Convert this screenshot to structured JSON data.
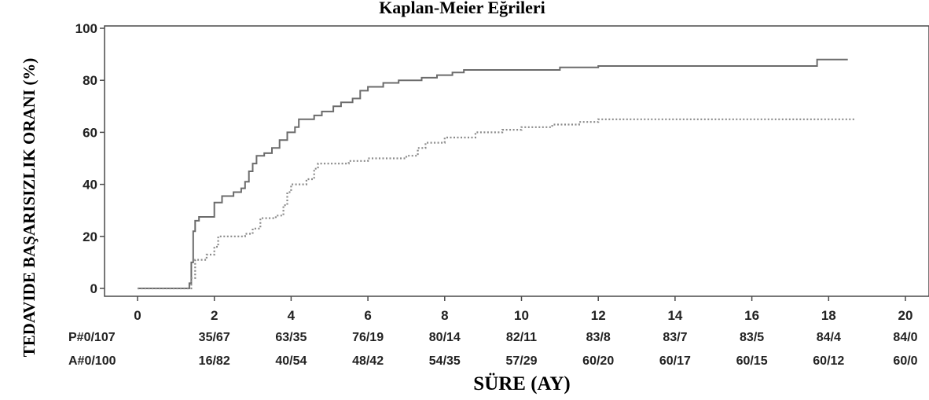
{
  "chart_data": {
    "type": "line",
    "title": "Kaplan-Meier Eğrileri",
    "xlabel": "SÜRE (AY)",
    "ylabel": "TEDAVIDE BAŞARISIZLIK ORANI (%)",
    "xlim": [
      0,
      20
    ],
    "ylim": [
      0,
      100
    ],
    "x_ticks": [
      0,
      2,
      4,
      6,
      8,
      10,
      12,
      14,
      16,
      18,
      20
    ],
    "y_ticks": [
      0,
      20,
      40,
      60,
      80,
      100
    ],
    "grid": false,
    "series": [
      {
        "style": "solid",
        "color": "#6b6b6b",
        "points": [
          [
            0,
            0
          ],
          [
            1.3,
            0
          ],
          [
            1.35,
            2
          ],
          [
            1.4,
            10
          ],
          [
            1.45,
            22
          ],
          [
            1.5,
            26
          ],
          [
            1.6,
            27.5
          ],
          [
            1.9,
            27.5
          ],
          [
            2.0,
            33
          ],
          [
            2.2,
            35.5
          ],
          [
            2.5,
            37
          ],
          [
            2.7,
            38.5
          ],
          [
            2.8,
            41
          ],
          [
            2.9,
            45
          ],
          [
            3.0,
            48
          ],
          [
            3.1,
            51
          ],
          [
            3.3,
            52
          ],
          [
            3.5,
            54
          ],
          [
            3.7,
            57
          ],
          [
            3.9,
            60
          ],
          [
            4.1,
            62
          ],
          [
            4.2,
            65
          ],
          [
            4.6,
            66.5
          ],
          [
            4.8,
            68
          ],
          [
            5.1,
            70
          ],
          [
            5.3,
            71.5
          ],
          [
            5.6,
            73
          ],
          [
            5.8,
            76
          ],
          [
            6.0,
            77.5
          ],
          [
            6.4,
            79
          ],
          [
            6.8,
            80
          ],
          [
            7.4,
            81
          ],
          [
            7.8,
            82
          ],
          [
            8.2,
            83
          ],
          [
            8.5,
            84
          ],
          [
            11.0,
            85
          ],
          [
            12.0,
            85.5
          ],
          [
            17.6,
            85.5
          ],
          [
            17.7,
            88
          ],
          [
            18.5,
            88
          ]
        ]
      },
      {
        "style": "dotted",
        "color": "#8a8a8a",
        "points": [
          [
            0,
            0
          ],
          [
            1.3,
            0
          ],
          [
            1.4,
            4
          ],
          [
            1.5,
            11
          ],
          [
            1.8,
            13
          ],
          [
            2.0,
            16
          ],
          [
            2.1,
            20
          ],
          [
            2.8,
            21
          ],
          [
            3.0,
            23
          ],
          [
            3.2,
            27
          ],
          [
            3.6,
            28
          ],
          [
            3.8,
            32
          ],
          [
            3.9,
            37
          ],
          [
            4.0,
            40
          ],
          [
            4.4,
            42
          ],
          [
            4.6,
            46
          ],
          [
            4.7,
            48
          ],
          [
            5.5,
            49
          ],
          [
            6.0,
            50
          ],
          [
            7.0,
            51
          ],
          [
            7.3,
            54
          ],
          [
            7.5,
            56
          ],
          [
            8.0,
            58
          ],
          [
            8.8,
            60
          ],
          [
            9.5,
            61
          ],
          [
            10.0,
            62
          ],
          [
            10.8,
            63
          ],
          [
            11.5,
            64
          ],
          [
            12.0,
            65
          ],
          [
            18.7,
            65
          ]
        ]
      }
    ],
    "risk_table": {
      "row_labels": [
        "P#0/107",
        "A#0/100"
      ],
      "row1": [
        "35/67",
        "63/35",
        "76/19",
        "80/14",
        "82/11",
        "83/8",
        "83/7",
        "83/5",
        "84/4",
        "84/0"
      ],
      "row2": [
        "16/82",
        "40/54",
        "48/42",
        "54/35",
        "57/29",
        "60/20",
        "60/17",
        "60/15",
        "60/12",
        "60/0"
      ]
    }
  }
}
